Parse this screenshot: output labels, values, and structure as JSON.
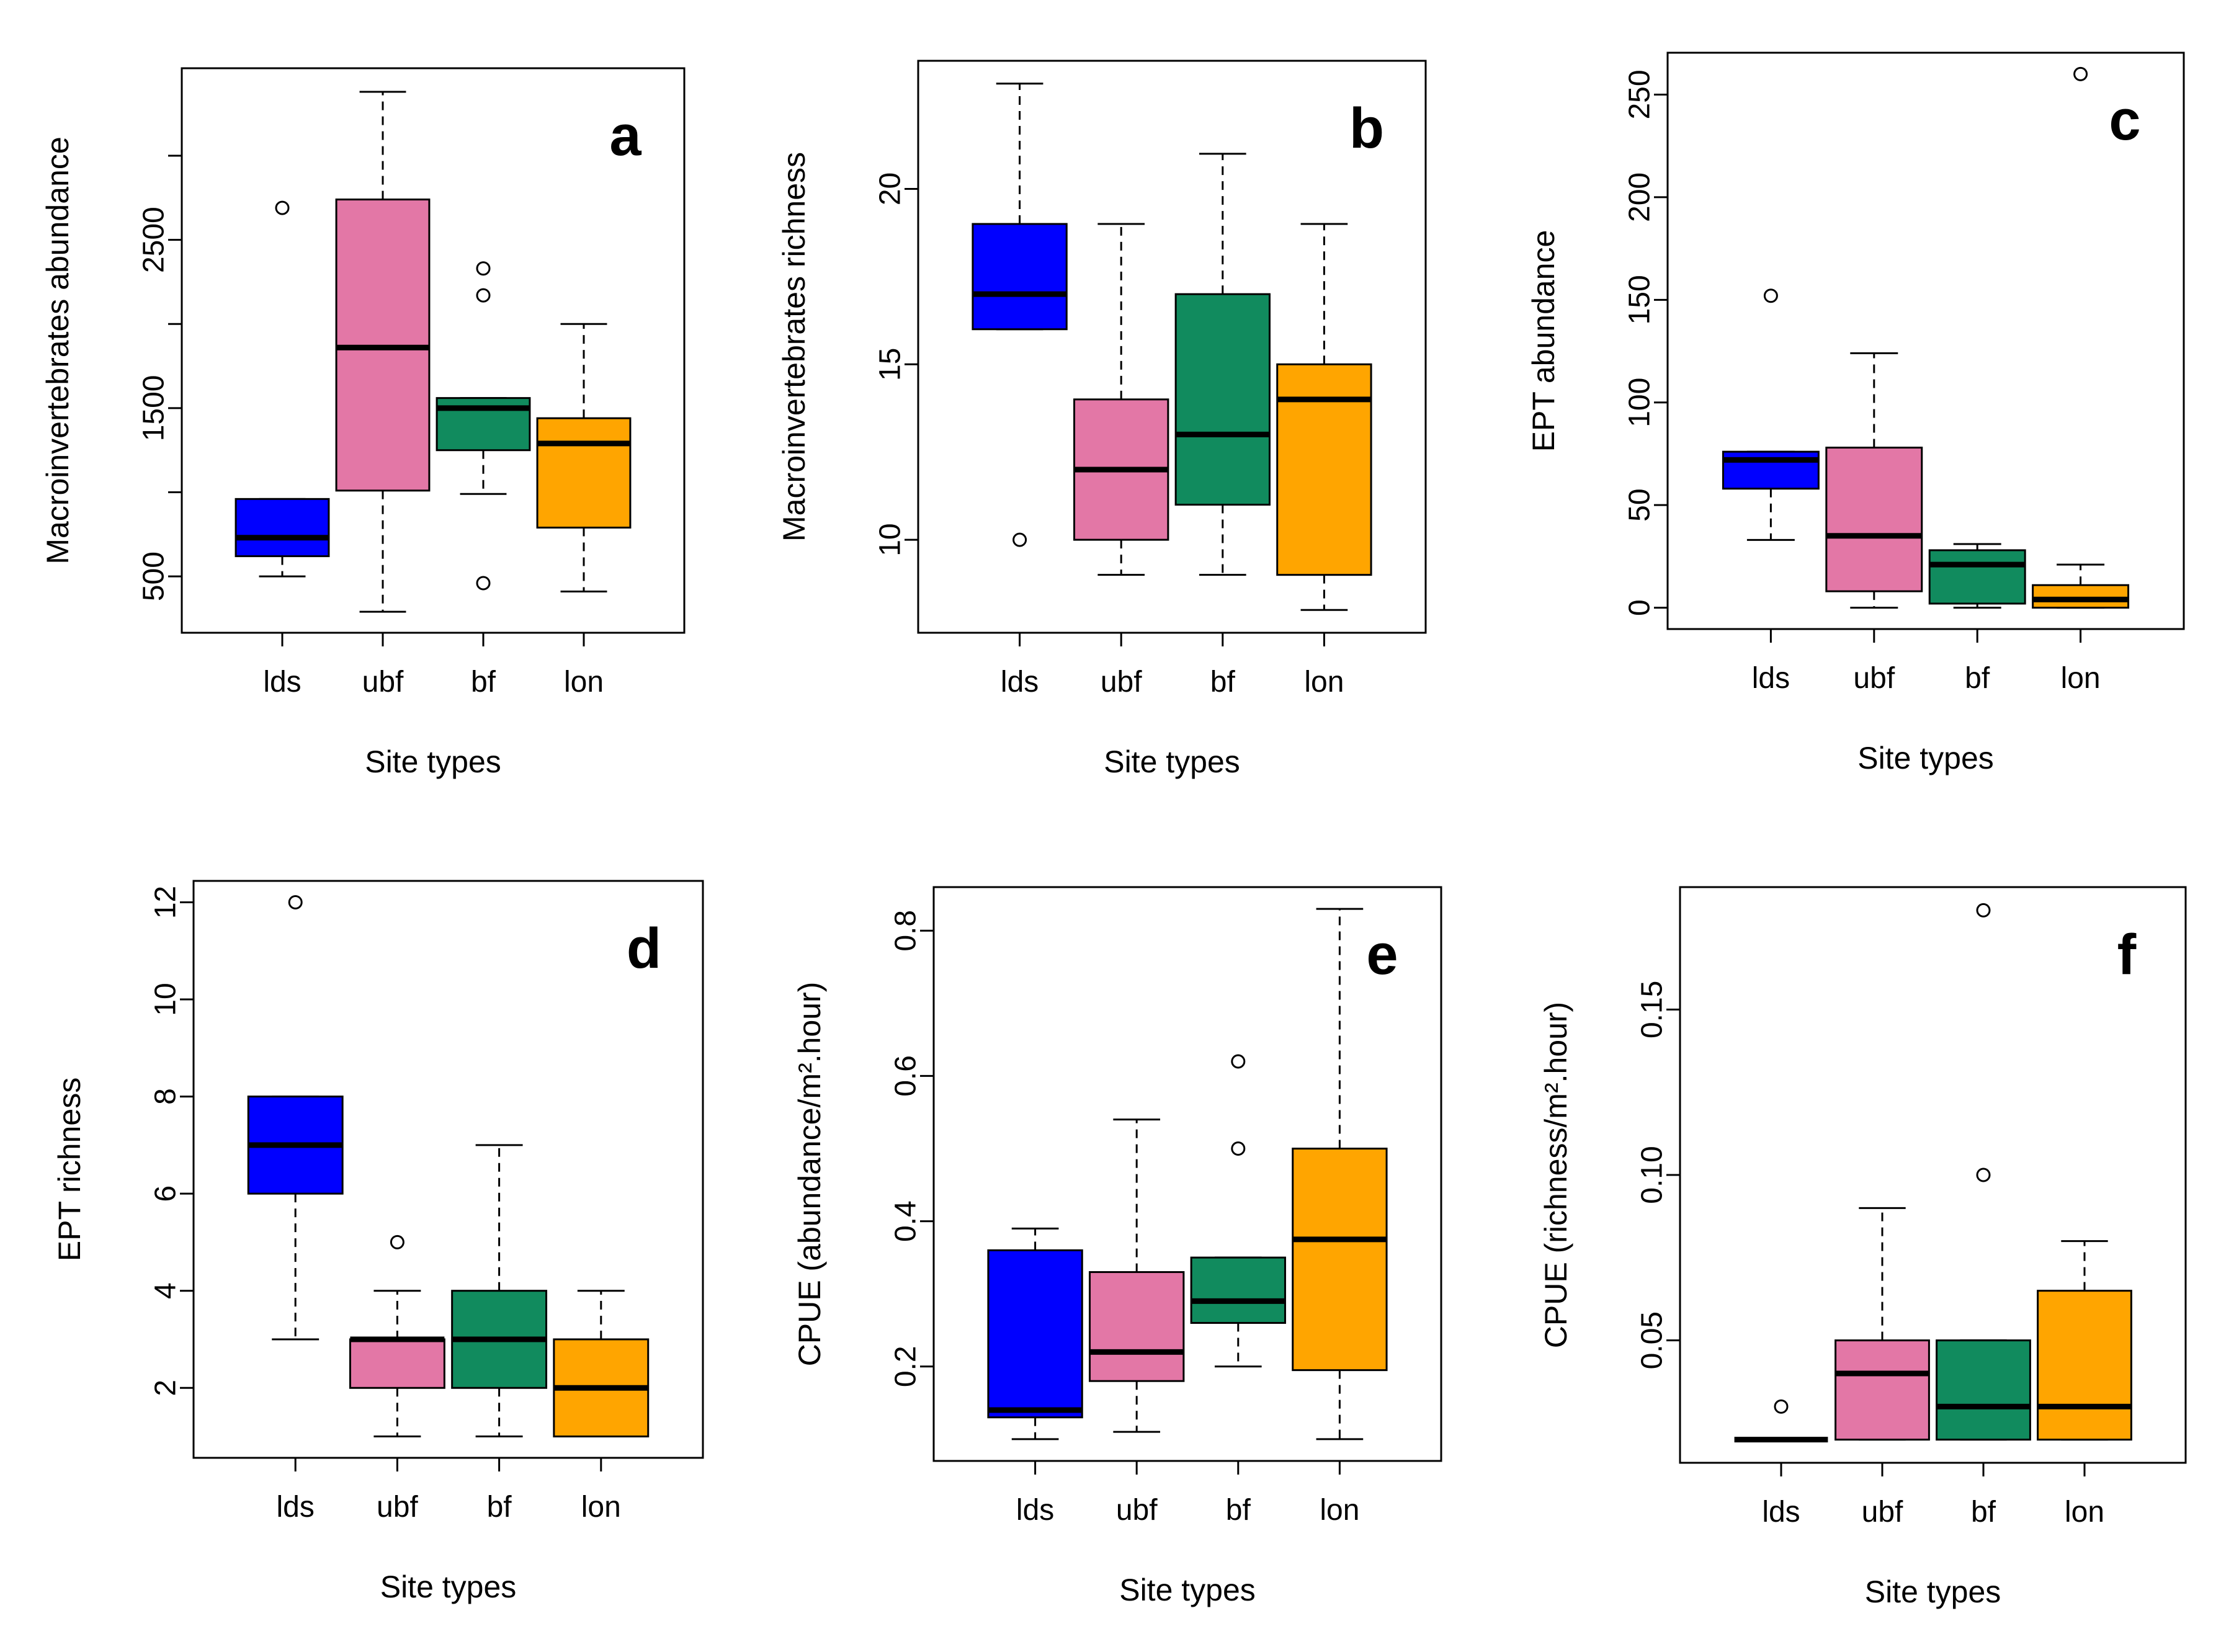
{
  "colors": {
    "lds": "#0000ff",
    "ubf": "#e377a6",
    "bf": "#118b5e",
    "lon": "#ffa500"
  },
  "chart_data": [
    {
      "type": "box",
      "panel": "a",
      "xlabel": "Site types",
      "ylabel": "Macroinvertebrates abundance",
      "categories": [
        "lds",
        "ubf",
        "bf",
        "lon"
      ],
      "ylim": [
        165,
        3520
      ],
      "yticks": [
        500,
        1500,
        2500
      ],
      "minor_yticks": [
        1000,
        2000,
        3000
      ],
      "boxes": [
        {
          "whisker_low": 500,
          "q1": 620,
          "median": 730,
          "q3": 960,
          "whisker_high": 960,
          "outliers": [
            2690
          ]
        },
        {
          "whisker_low": 290,
          "q1": 1010,
          "median": 1860,
          "q3": 2740,
          "whisker_high": 3380,
          "outliers": []
        },
        {
          "whisker_low": 990,
          "q1": 1250,
          "median": 1500,
          "q3": 1560,
          "whisker_high": 1560,
          "outliers": [
            2330,
            2170,
            460
          ]
        },
        {
          "whisker_low": 410,
          "q1": 790,
          "median": 1290,
          "q3": 1440,
          "whisker_high": 2000,
          "outliers": []
        }
      ]
    },
    {
      "type": "box",
      "panel": "b",
      "xlabel": "Site types",
      "ylabel": "Macroinvertebrates richness",
      "categories": [
        "lds",
        "ubf",
        "bf",
        "lon"
      ],
      "ylim": [
        7.35,
        23.65
      ],
      "yticks": [
        10,
        15,
        20
      ],
      "minor_yticks": [],
      "boxes": [
        {
          "whisker_low": 16,
          "q1": 16,
          "median": 17,
          "q3": 19,
          "whisker_high": 23,
          "outliers": [
            10
          ]
        },
        {
          "whisker_low": 9,
          "q1": 10,
          "median": 12,
          "q3": 14,
          "whisker_high": 19,
          "outliers": []
        },
        {
          "whisker_low": 9,
          "q1": 11,
          "median": 13,
          "q3": 17,
          "whisker_high": 21,
          "outliers": []
        },
        {
          "whisker_low": 8,
          "q1": 9,
          "median": 14,
          "q3": 15,
          "whisker_high": 19,
          "outliers": []
        }
      ]
    },
    {
      "type": "box",
      "panel": "c",
      "xlabel": "Site types",
      "ylabel": "EPT abundance",
      "categories": [
        "lds",
        "ubf",
        "bf",
        "lon"
      ],
      "ylim": [
        -10.4,
        270.4
      ],
      "yticks": [
        0,
        50,
        100,
        150,
        200,
        250
      ],
      "minor_yticks": [],
      "boxes": [
        {
          "whisker_low": 33,
          "q1": 58,
          "median": 72,
          "q3": 76,
          "whisker_high": 76,
          "outliers": [
            152
          ]
        },
        {
          "whisker_low": 0,
          "q1": 8,
          "median": 35,
          "q3": 78,
          "whisker_high": 124,
          "outliers": []
        },
        {
          "whisker_low": 0,
          "q1": 2,
          "median": 21,
          "q3": 28,
          "whisker_high": 31,
          "outliers": []
        },
        {
          "whisker_low": 0,
          "q1": 0,
          "median": 4,
          "q3": 11,
          "whisker_high": 21,
          "outliers": [
            260
          ]
        }
      ]
    },
    {
      "type": "box",
      "panel": "d",
      "xlabel": "Site types",
      "ylabel": "EPT richness",
      "categories": [
        "lds",
        "ubf",
        "bf",
        "lon"
      ],
      "ylim": [
        0.56,
        12.44
      ],
      "yticks": [
        2,
        4,
        6,
        8,
        10,
        12
      ],
      "minor_yticks": [],
      "boxes": [
        {
          "whisker_low": 3,
          "q1": 6,
          "median": 7,
          "q3": 8,
          "whisker_high": 8,
          "outliers": [
            12
          ]
        },
        {
          "whisker_low": 1,
          "q1": 2,
          "median": 3,
          "q3": 3,
          "whisker_high": 4,
          "outliers": [
            5
          ]
        },
        {
          "whisker_low": 1,
          "q1": 2,
          "median": 3,
          "q3": 4,
          "whisker_high": 7,
          "outliers": []
        },
        {
          "whisker_low": 1,
          "q1": 1,
          "median": 2,
          "q3": 3,
          "whisker_high": 4,
          "outliers": []
        }
      ]
    },
    {
      "type": "box",
      "panel": "e",
      "xlabel": "Site types",
      "ylabel": "CPUE (abundance/m².hour)",
      "categories": [
        "lds",
        "ubf",
        "bf",
        "lon"
      ],
      "ylim": [
        0.07,
        0.86
      ],
      "yticks": [
        0.2,
        0.4,
        0.6,
        0.8
      ],
      "minor_yticks": [],
      "boxes": [
        {
          "whisker_low": 0.1,
          "q1": 0.13,
          "median": 0.14,
          "q3": 0.36,
          "whisker_high": 0.39,
          "outliers": []
        },
        {
          "whisker_low": 0.11,
          "q1": 0.18,
          "median": 0.22,
          "q3": 0.33,
          "whisker_high": 0.54,
          "outliers": []
        },
        {
          "whisker_low": 0.2,
          "q1": 0.26,
          "median": 0.29,
          "q3": 0.35,
          "whisker_high": 0.35,
          "outliers": [
            0.62,
            0.5
          ]
        },
        {
          "whisker_low": 0.1,
          "q1": 0.195,
          "median": 0.375,
          "q3": 0.5,
          "whisker_high": 0.83,
          "outliers": []
        }
      ]
    },
    {
      "type": "box",
      "panel": "f",
      "xlabel": "Site types",
      "ylabel": "CPUE (richness/m².hour)",
      "categories": [
        "lds",
        "ubf",
        "bf",
        "lon"
      ],
      "ylim": [
        0.013,
        0.187
      ],
      "yticks": [
        0.05,
        0.1,
        0.15
      ],
      "ytick_labels": [
        "0.05",
        "0.10",
        "0.15"
      ],
      "minor_yticks": [],
      "boxes": [
        {
          "whisker_low": 0.02,
          "q1": 0.02,
          "median": 0.02,
          "q3": 0.02,
          "whisker_high": 0.02,
          "outliers": [
            0.03
          ]
        },
        {
          "whisker_low": 0.02,
          "q1": 0.02,
          "median": 0.04,
          "q3": 0.05,
          "whisker_high": 0.09,
          "outliers": []
        },
        {
          "whisker_low": 0.02,
          "q1": 0.02,
          "median": 0.03,
          "q3": 0.05,
          "whisker_high": 0.05,
          "outliers": [
            0.18,
            0.1
          ]
        },
        {
          "whisker_low": 0.02,
          "q1": 0.02,
          "median": 0.03,
          "q3": 0.065,
          "whisker_high": 0.08,
          "outliers": []
        }
      ]
    }
  ]
}
